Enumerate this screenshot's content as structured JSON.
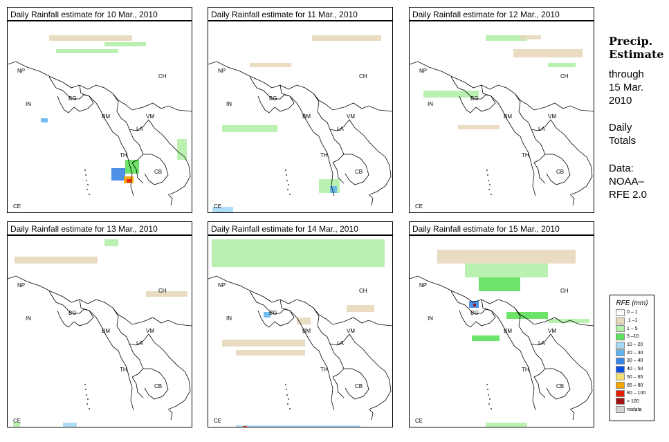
{
  "panels": [
    {
      "title": "Daily Rainfall estimate for  10 Mar., 2010"
    },
    {
      "title": "Daily Rainfall estimate for  11 Mar., 2010"
    },
    {
      "title": "Daily Rainfall estimate for  12 Mar., 2010"
    },
    {
      "title": "Daily Rainfall estimate for  13 Mar., 2010"
    },
    {
      "title": "Daily Rainfall estimate for  14 Mar., 2010"
    },
    {
      "title": "Daily Rainfall estimate for  15 Mar., 2010"
    }
  ],
  "map_labels": [
    "NP",
    "CH",
    "IN",
    "BG",
    "BM",
    "VM",
    "LA",
    "TH",
    "CB",
    "CE"
  ],
  "side": {
    "title": "Precip.\nEstimate",
    "through": "through\n15 Mar.\n2010",
    "daily": "Daily\nTotals",
    "data": "Data:\nNOAA–\nRFE 2.0"
  },
  "legend": {
    "title": "RFE (mm)",
    "items": [
      {
        "label": "0 – 1",
        "color": "#ffffff"
      },
      {
        "label": ".1 –1",
        "color": "#e8d8bc"
      },
      {
        "label": "1 – 5",
        "color": "#b2f0a8"
      },
      {
        "label": "5 –10",
        "color": "#5ee05a"
      },
      {
        "label": "10 – 20",
        "color": "#a6d8f6"
      },
      {
        "label": "20 – 30",
        "color": "#62b4ee"
      },
      {
        "label": "30 – 40",
        "color": "#3a86e4"
      },
      {
        "label": "40 – 50",
        "color": "#0a4ee0"
      },
      {
        "label": "50 – 65",
        "color": "#f6e070"
      },
      {
        "label": "65 – 80",
        "color": "#f6a400"
      },
      {
        "label": "80 – 100",
        "color": "#e81c00"
      },
      {
        "label": "> 100",
        "color": "#9e1414"
      },
      {
        "label": "nodata",
        "color": "#d4d4d4"
      }
    ]
  }
}
